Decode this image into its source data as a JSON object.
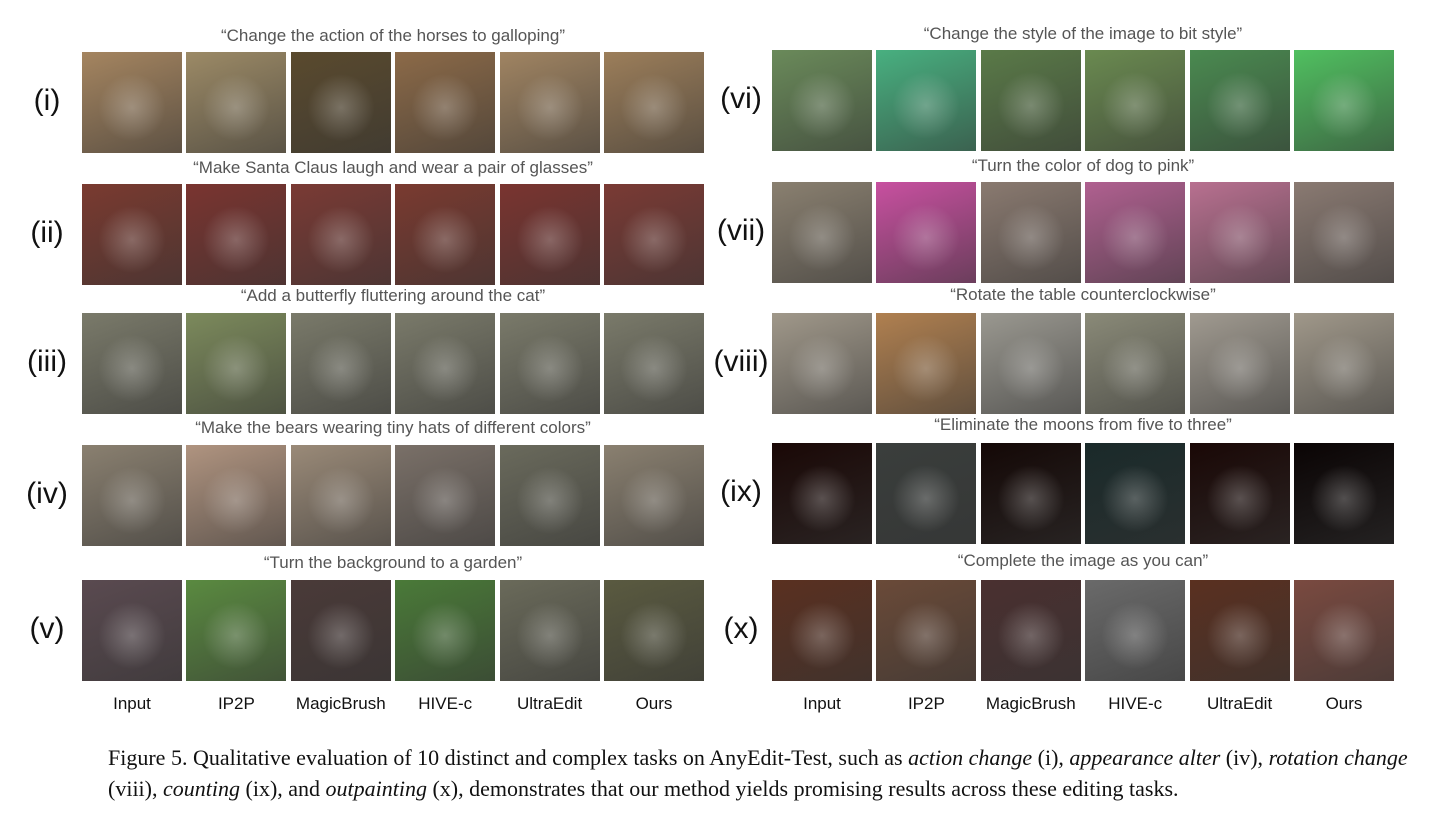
{
  "columns": [
    "Input",
    "IP2P",
    "MagicBrush",
    "HIVE-c",
    "UltraEdit",
    "Ours"
  ],
  "left_rows": [
    {
      "label": "(i)",
      "prompt": "“Change the action of the horses to galloping”",
      "colors": [
        "#a58560",
        "#9c8a66",
        "#5a4a2e",
        "#8c6a48",
        "#a08462",
        "#9c7e5a"
      ]
    },
    {
      "label": "(ii)",
      "prompt": "“Make Santa Claus laugh and wear a pair of glasses”",
      "colors": [
        "#7a3a30",
        "#7a3430",
        "#7a3a34",
        "#7a3a30",
        "#7a3430",
        "#7a3a34"
      ]
    },
    {
      "label": "(iii)",
      "prompt": "“Add a butterfly fluttering around the cat”",
      "colors": [
        "#7a7a6a",
        "#7c8a5c",
        "#7a7a6a",
        "#7a7a6a",
        "#7a7a6a",
        "#7a7a6a"
      ]
    },
    {
      "label": "(iv)",
      "prompt": "“Make the bears wearing tiny hats of different colors”",
      "colors": [
        "#8a8070",
        "#b09480",
        "#9a8a78",
        "#7a7068",
        "#6a6a5c",
        "#8a8070"
      ]
    },
    {
      "label": "(v)",
      "prompt": "“Turn the background to a garden”",
      "colors": [
        "#5a4a50",
        "#5a8a40",
        "#4a3a38",
        "#4a7a38",
        "#6a6a5a",
        "#5a5a40"
      ]
    }
  ],
  "right_rows": [
    {
      "label": "(vi)",
      "prompt": "“Change the style of the image to bit style”",
      "colors": [
        "#6a8a5a",
        "#48b080",
        "#5a7a48",
        "#6a8a50",
        "#4a8a50",
        "#50c060"
      ]
    },
    {
      "label": "(vii)",
      "prompt": "“Turn the color of dog to pink”",
      "colors": [
        "#8a8070",
        "#c850a0",
        "#8a7a70",
        "#b06090",
        "#b87090",
        "#8a7a72"
      ]
    },
    {
      "label": "(viii)",
      "prompt": "“Rotate the table counterclockwise”",
      "colors": [
        "#a0988a",
        "#b08050",
        "#9a9890",
        "#8a8a78",
        "#a09a90",
        "#a0988a"
      ]
    },
    {
      "label": "(ix)",
      "prompt": "“Eliminate the moons from five to three”",
      "colors": [
        "#1a0806",
        "#3a3e3c",
        "#140806",
        "#1a2a2a",
        "#1a0806",
        "#0a0404"
      ]
    },
    {
      "label": "(x)",
      "prompt": "“Complete the image as you can”",
      "colors": [
        "#5a3020",
        "#6a4a38",
        "#4a3030",
        "#6a6a6a",
        "#5a3020",
        "#7a4a40"
      ]
    }
  ],
  "caption": {
    "prefix": "Figure 5. Qualitative evaluation of 10 distinct and complex tasks on AnyEdit-Test, such as ",
    "t1": "action change",
    " m1": "",
    "a1": " (i), ",
    "t2": "appearance alter",
    "a2": " (iv), ",
    "t3": "rotation change",
    "a3": " (viii), ",
    "t4": "counting",
    "a4": " (ix), and ",
    "t5": "outpainting",
    "a5": " (x), demonstrates that our method yields promising results across these editing tasks."
  }
}
